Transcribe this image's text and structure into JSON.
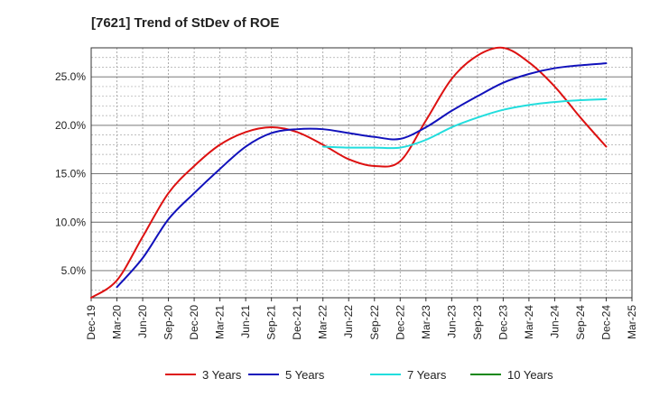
{
  "chart_data": {
    "type": "line",
    "title": "[7621]  Trend of StDev of ROE",
    "xlabel": "",
    "ylabel": "",
    "x": [
      "Dec-19",
      "Mar-20",
      "Jun-20",
      "Sep-20",
      "Dec-20",
      "Mar-21",
      "Jun-21",
      "Sep-21",
      "Dec-21",
      "Mar-22",
      "Jun-22",
      "Sep-22",
      "Dec-22",
      "Mar-23",
      "Jun-23",
      "Sep-23",
      "Dec-23",
      "Mar-24",
      "Jun-24",
      "Sep-24",
      "Dec-24",
      "Mar-25"
    ],
    "ylim": [
      2.2,
      28.0
    ],
    "y_ticks": [
      5.0,
      10.0,
      15.0,
      20.0,
      25.0
    ],
    "y_tick_labels": [
      "5.0%",
      "10.0%",
      "15.0%",
      "20.0%",
      "25.0%"
    ],
    "grid": true,
    "legend_position": "bottom",
    "series": [
      {
        "name": "3 Years",
        "color": "#dd1111",
        "values": [
          2.2,
          4.0,
          8.5,
          13.0,
          15.8,
          18.0,
          19.3,
          19.8,
          19.3,
          18.0,
          16.5,
          15.8,
          16.3,
          20.5,
          24.8,
          27.2,
          28.0,
          26.5,
          24.0,
          20.8,
          17.8,
          null
        ]
      },
      {
        "name": "5 Years",
        "color": "#1111bb",
        "values": [
          null,
          3.3,
          6.3,
          10.3,
          13.0,
          15.5,
          17.8,
          19.2,
          19.6,
          19.6,
          19.2,
          18.8,
          18.6,
          19.8,
          21.5,
          23.0,
          24.4,
          25.3,
          25.9,
          26.2,
          26.4,
          null
        ]
      },
      {
        "name": "7 Years",
        "color": "#22dddd",
        "values": [
          null,
          null,
          null,
          null,
          null,
          null,
          null,
          null,
          null,
          17.8,
          17.7,
          17.7,
          17.7,
          18.5,
          19.8,
          20.8,
          21.6,
          22.1,
          22.4,
          22.6,
          22.7,
          null
        ]
      },
      {
        "name": "10 Years",
        "color": "#118811",
        "values": [
          null,
          null,
          null,
          null,
          null,
          null,
          null,
          null,
          null,
          null,
          null,
          null,
          null,
          null,
          null,
          null,
          null,
          null,
          null,
          null,
          null,
          null
        ]
      }
    ]
  }
}
